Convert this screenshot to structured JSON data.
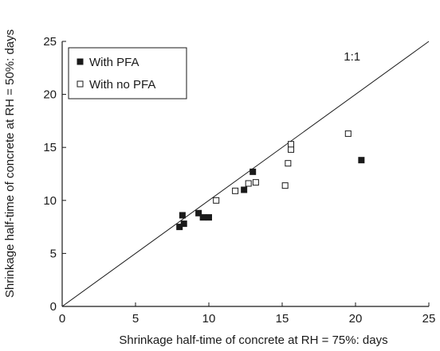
{
  "chart_data": {
    "type": "scatter",
    "title": "",
    "xlabel": "Shrinkage half-time of concrete at RH = 75%: days",
    "ylabel": "Shrinkage half-time of concrete at RH = 50%: days",
    "xlim": [
      0,
      25
    ],
    "ylim": [
      0,
      25
    ],
    "x_ticks": [
      0,
      5,
      10,
      15,
      20,
      25
    ],
    "y_ticks": [
      0,
      5,
      10,
      15,
      20,
      25
    ],
    "grid": false,
    "legend_position": "top-left",
    "reference_line": {
      "label": "1:1",
      "from": [
        0,
        0
      ],
      "to": [
        25,
        25
      ]
    },
    "series": [
      {
        "name": "With PFA",
        "marker": "filled-square",
        "color": "#1a1a1a",
        "points": [
          [
            8.0,
            7.5
          ],
          [
            8.3,
            7.8
          ],
          [
            8.2,
            8.6
          ],
          [
            9.3,
            8.8
          ],
          [
            9.6,
            8.4
          ],
          [
            10.0,
            8.4
          ],
          [
            12.4,
            11.0
          ],
          [
            13.0,
            12.7
          ],
          [
            20.4,
            13.8
          ]
        ]
      },
      {
        "name": "With no PFA",
        "marker": "open-square",
        "color": "#1a1a1a",
        "points": [
          [
            10.5,
            10.0
          ],
          [
            11.8,
            10.9
          ],
          [
            12.7,
            11.6
          ],
          [
            13.2,
            11.7
          ],
          [
            15.2,
            11.4
          ],
          [
            15.4,
            13.5
          ],
          [
            15.6,
            14.8
          ],
          [
            15.6,
            15.3
          ],
          [
            19.5,
            16.3
          ]
        ]
      }
    ]
  }
}
